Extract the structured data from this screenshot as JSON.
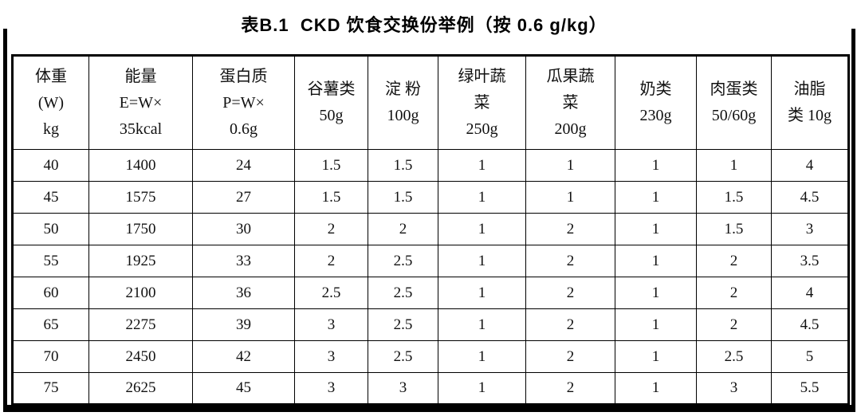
{
  "title": "表B.1  CKD 饮食交换份举例（按 0.6 g/kg）",
  "table": {
    "headers": [
      {
        "id": "weight",
        "lines": [
          "体重",
          "(W)",
          "kg"
        ]
      },
      {
        "id": "energy",
        "lines": [
          "能量",
          "E=W×",
          "35kcal"
        ]
      },
      {
        "id": "protein",
        "lines": [
          "蛋白质",
          "P=W×",
          "0.6g"
        ]
      },
      {
        "id": "grains",
        "lines": [
          "谷薯类",
          "50g"
        ]
      },
      {
        "id": "starch",
        "lines": [
          "淀 粉",
          "100g"
        ]
      },
      {
        "id": "green-veg",
        "lines": [
          "绿叶蔬",
          "菜",
          "250g"
        ]
      },
      {
        "id": "melon-veg",
        "lines": [
          "瓜果蔬",
          "菜",
          "200g"
        ]
      },
      {
        "id": "dairy",
        "lines": [
          "奶类",
          "230g"
        ]
      },
      {
        "id": "meat-egg",
        "lines": [
          "肉蛋类",
          "50/60g"
        ]
      },
      {
        "id": "oil",
        "lines": [
          "油脂",
          "类 10g"
        ]
      }
    ],
    "rows": [
      [
        "40",
        "1400",
        "24",
        "1.5",
        "1.5",
        "1",
        "1",
        "1",
        "1",
        "4"
      ],
      [
        "45",
        "1575",
        "27",
        "1.5",
        "1.5",
        "1",
        "1",
        "1",
        "1.5",
        "4.5"
      ],
      [
        "50",
        "1750",
        "30",
        "2",
        "2",
        "1",
        "2",
        "1",
        "1.5",
        "3"
      ],
      [
        "55",
        "1925",
        "33",
        "2",
        "2.5",
        "1",
        "2",
        "1",
        "2",
        "3.5"
      ],
      [
        "60",
        "2100",
        "36",
        "2.5",
        "2.5",
        "1",
        "2",
        "1",
        "2",
        "4"
      ],
      [
        "65",
        "2275",
        "39",
        "3",
        "2.5",
        "1",
        "2",
        "1",
        "2",
        "4.5"
      ],
      [
        "70",
        "2450",
        "42",
        "3",
        "2.5",
        "1",
        "2",
        "1",
        "2.5",
        "5"
      ],
      [
        "75",
        "2625",
        "45",
        "3",
        "3",
        "1",
        "2",
        "1",
        "3",
        "5.5"
      ]
    ]
  }
}
